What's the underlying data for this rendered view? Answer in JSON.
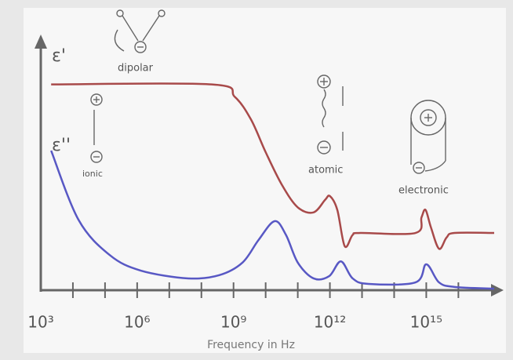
{
  "chart_data": {
    "type": "line",
    "xlabel": "Frequency in Hz",
    "xscale": "log",
    "xlim": [
      1000,
      1.3e+17
    ],
    "xticks": [
      {
        "value": 1000,
        "label": "10³"
      },
      {
        "value": 1000000,
        "label": "10⁶"
      },
      {
        "value": 1000000000,
        "label": "10⁹"
      },
      {
        "value": 1000000000000,
        "label": "10¹²"
      },
      {
        "value": 1000000000000000,
        "label": "10¹⁵"
      }
    ],
    "xminorticks": [
      10000,
      100000,
      10000000,
      100000000,
      10000000000,
      100000000000,
      10000000000000,
      100000000000000,
      10000000000000000
    ],
    "ylim": [
      0,
      10
    ],
    "series": [
      {
        "name": "ε'",
        "color": "#a84a4a",
        "x": [
          2100,
          210000000.0,
          1100000000.0,
          3500000000.0,
          10000000000.0,
          32000000000.0,
          100000000000.0,
          310000000000.0,
          710000000000.0,
          1000000000000.0,
          1700000000000.0,
          2900000000000.0,
          5100000000000.0,
          8900000000000.0,
          460000000000000.0,
          710000000000000.0,
          950000000000000.0,
          1400000000000000.0,
          2500000000000000.0,
          4300000000000000.0,
          7600000000000000.0,
          1.3e+17
        ],
        "values": [
          8.2,
          8.2,
          7.7,
          6.8,
          5.5,
          4.2,
          3.3,
          3.1,
          3.6,
          3.75,
          3.2,
          1.75,
          2.2,
          2.28,
          2.28,
          2.9,
          3.2,
          2.5,
          1.65,
          2.1,
          2.28,
          2.28
        ]
      },
      {
        "name": "ε''",
        "color": "#5858c4",
        "x": [
          2100,
          15000,
          140000,
          1300000,
          39000000.0,
          360000000.0,
          1900000000.0,
          6000000000.0,
          19000000000.0,
          43000000000.0,
          100000000000.0,
          310000000000.0,
          950000000000.0,
          2200000000000.0,
          5100000000000.0,
          16000000000000.0,
          460000000000000.0,
          1000000000000000.0,
          2500000000000000.0,
          7600000000000000.0,
          1.3e+17
        ],
        "values": [
          5.56,
          2.8,
          1.4,
          0.78,
          0.47,
          0.6,
          1.1,
          2.0,
          2.75,
          2.2,
          1.1,
          0.47,
          0.56,
          1.15,
          0.47,
          0.25,
          0.31,
          1.03,
          0.31,
          0.13,
          0.06
        ]
      }
    ],
    "annotations": [
      "dipolar",
      "ionic",
      "atomic",
      "electronic"
    ]
  }
}
